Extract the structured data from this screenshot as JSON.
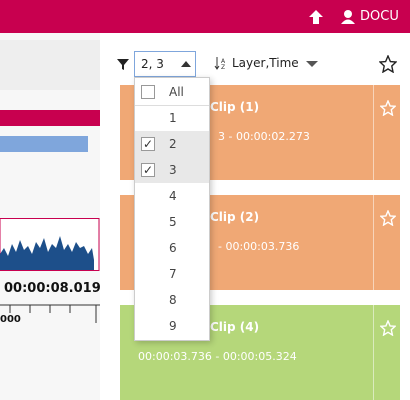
{
  "header": {
    "user": "DOCU"
  },
  "left": {
    "time": "00:00:08.019",
    "tick": "000"
  },
  "toolbar": {
    "filter": "2, 3",
    "sort": "Layer,Time"
  },
  "dropdown": {
    "items": [
      {
        "label": "All",
        "checked": false
      },
      {
        "label": "1",
        "checked": false
      },
      {
        "label": "2",
        "checked": true
      },
      {
        "label": "3",
        "checked": true
      },
      {
        "label": "4",
        "checked": false
      },
      {
        "label": "5",
        "checked": false
      },
      {
        "label": "6",
        "checked": false
      },
      {
        "label": "7",
        "checked": false
      },
      {
        "label": "8",
        "checked": false
      },
      {
        "label": "9",
        "checked": false
      }
    ]
  },
  "cards": [
    {
      "title": "Clip (1)",
      "time": "3 - 00:00:02.273",
      "color": "#f0a875"
    },
    {
      "title": "Clip (2)",
      "time": "- 00:00:03.736",
      "color": "#f0a875"
    },
    {
      "title": "Clip (4)",
      "time": "00:00:03.736 - 00:00:05.324",
      "color": "#b5d77a"
    }
  ]
}
